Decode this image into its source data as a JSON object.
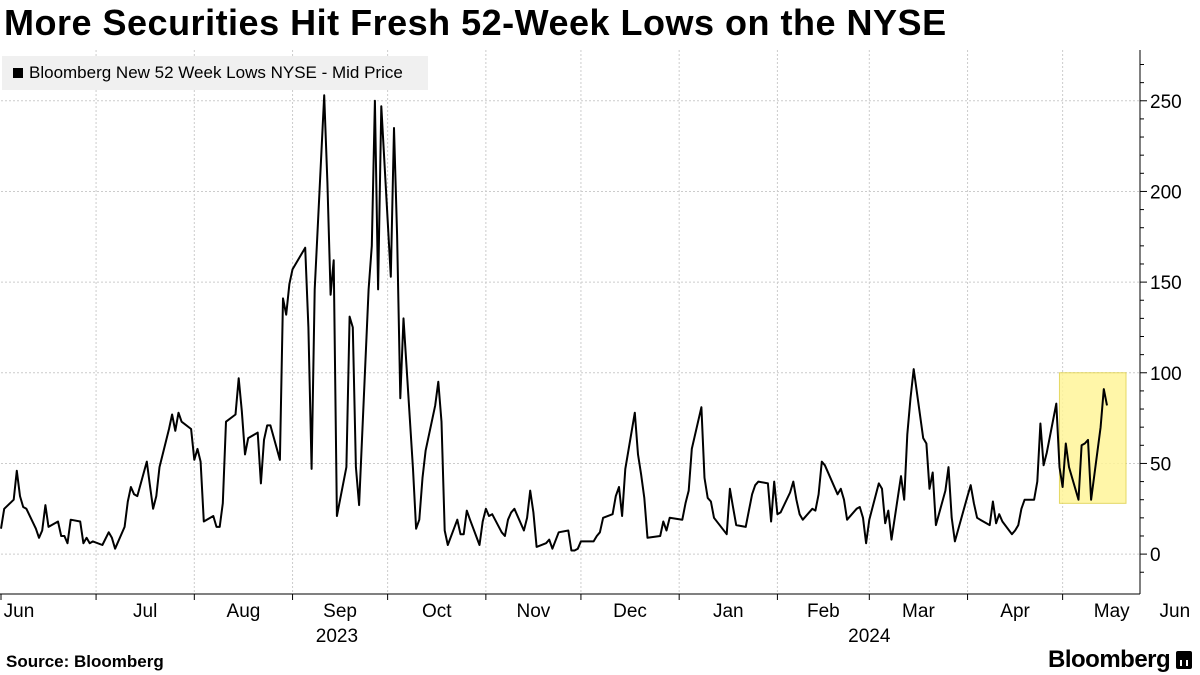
{
  "title": "More Securities Hit Fresh 52-Week Lows on the NYSE",
  "source": "Source: Bloomberg",
  "logo_text": "Bloomberg",
  "chart_data": {
    "type": "line",
    "series": [
      {
        "name": "Bloomberg New 52 Week Lows NYSE - Mid Price",
        "color": "#000000",
        "points": [
          [
            "2023-06-01",
            14
          ],
          [
            "2023-06-02",
            25
          ],
          [
            "2023-06-05",
            30
          ],
          [
            "2023-06-06",
            46
          ],
          [
            "2023-06-07",
            32
          ],
          [
            "2023-06-08",
            26
          ],
          [
            "2023-06-09",
            25
          ],
          [
            "2023-06-12",
            14
          ],
          [
            "2023-06-13",
            9
          ],
          [
            "2023-06-14",
            13
          ],
          [
            "2023-06-15",
            27
          ],
          [
            "2023-06-16",
            15
          ],
          [
            "2023-06-19",
            18
          ],
          [
            "2023-06-20",
            10
          ],
          [
            "2023-06-21",
            10
          ],
          [
            "2023-06-22",
            6
          ],
          [
            "2023-06-23",
            19
          ],
          [
            "2023-06-26",
            18
          ],
          [
            "2023-06-27",
            6
          ],
          [
            "2023-06-28",
            9
          ],
          [
            "2023-06-29",
            6
          ],
          [
            "2023-06-30",
            7
          ],
          [
            "2023-07-03",
            5
          ],
          [
            "2023-07-05",
            12
          ],
          [
            "2023-07-06",
            9
          ],
          [
            "2023-07-07",
            3
          ],
          [
            "2023-07-10",
            15
          ],
          [
            "2023-07-11",
            29
          ],
          [
            "2023-07-12",
            37
          ],
          [
            "2023-07-13",
            33
          ],
          [
            "2023-07-14",
            32
          ],
          [
            "2023-07-17",
            51
          ],
          [
            "2023-07-18",
            38
          ],
          [
            "2023-07-19",
            25
          ],
          [
            "2023-07-20",
            32
          ],
          [
            "2023-07-21",
            48
          ],
          [
            "2023-07-24",
            69
          ],
          [
            "2023-07-25",
            77
          ],
          [
            "2023-07-26",
            68
          ],
          [
            "2023-07-27",
            78
          ],
          [
            "2023-07-28",
            73
          ],
          [
            "2023-07-31",
            69
          ],
          [
            "2023-08-01",
            52
          ],
          [
            "2023-08-02",
            58
          ],
          [
            "2023-08-03",
            51
          ],
          [
            "2023-08-04",
            18
          ],
          [
            "2023-08-07",
            21
          ],
          [
            "2023-08-08",
            15
          ],
          [
            "2023-08-09",
            15
          ],
          [
            "2023-08-10",
            28
          ],
          [
            "2023-08-11",
            73
          ],
          [
            "2023-08-14",
            77
          ],
          [
            "2023-08-15",
            97
          ],
          [
            "2023-08-16",
            79
          ],
          [
            "2023-08-17",
            55
          ],
          [
            "2023-08-18",
            64
          ],
          [
            "2023-08-21",
            67
          ],
          [
            "2023-08-22",
            39
          ],
          [
            "2023-08-23",
            63
          ],
          [
            "2023-08-24",
            71
          ],
          [
            "2023-08-25",
            71
          ],
          [
            "2023-08-28",
            52
          ],
          [
            "2023-08-29",
            141
          ],
          [
            "2023-08-30",
            132
          ],
          [
            "2023-08-31",
            149
          ],
          [
            "2023-09-01",
            157
          ],
          [
            "2023-09-05",
            169
          ],
          [
            "2023-09-06",
            125
          ],
          [
            "2023-09-07",
            47
          ],
          [
            "2023-09-08",
            146
          ],
          [
            "2023-09-11",
            253
          ],
          [
            "2023-09-12",
            205
          ],
          [
            "2023-09-13",
            143
          ],
          [
            "2023-09-14",
            162
          ],
          [
            "2023-09-15",
            21
          ],
          [
            "2023-09-18",
            48
          ],
          [
            "2023-09-19",
            131
          ],
          [
            "2023-09-20",
            125
          ],
          [
            "2023-09-21",
            48
          ],
          [
            "2023-09-22",
            27
          ],
          [
            "2023-09-25",
            146
          ],
          [
            "2023-09-26",
            170
          ],
          [
            "2023-09-27",
            250
          ],
          [
            "2023-09-28",
            146
          ],
          [
            "2023-09-29",
            247
          ],
          [
            "2023-10-02",
            153
          ],
          [
            "2023-10-03",
            235
          ],
          [
            "2023-10-04",
            176
          ],
          [
            "2023-10-05",
            86
          ],
          [
            "2023-10-06",
            130
          ],
          [
            "2023-10-09",
            47
          ],
          [
            "2023-10-10",
            14
          ],
          [
            "2023-10-11",
            19
          ],
          [
            "2023-10-12",
            42
          ],
          [
            "2023-10-13",
            57
          ],
          [
            "2023-10-16",
            82
          ],
          [
            "2023-10-17",
            95
          ],
          [
            "2023-10-18",
            73
          ],
          [
            "2023-10-19",
            13
          ],
          [
            "2023-10-20",
            5
          ],
          [
            "2023-10-23",
            19
          ],
          [
            "2023-10-24",
            11
          ],
          [
            "2023-10-25",
            11
          ],
          [
            "2023-10-26",
            24
          ],
          [
            "2023-10-27",
            19
          ],
          [
            "2023-10-30",
            5
          ],
          [
            "2023-10-31",
            18
          ],
          [
            "2023-11-01",
            25
          ],
          [
            "2023-11-02",
            21
          ],
          [
            "2023-11-03",
            22
          ],
          [
            "2023-11-06",
            12
          ],
          [
            "2023-11-07",
            10
          ],
          [
            "2023-11-08",
            19
          ],
          [
            "2023-11-09",
            23
          ],
          [
            "2023-11-10",
            25
          ],
          [
            "2023-11-13",
            13
          ],
          [
            "2023-11-14",
            20
          ],
          [
            "2023-11-15",
            35
          ],
          [
            "2023-11-16",
            23
          ],
          [
            "2023-11-17",
            4
          ],
          [
            "2023-11-20",
            6
          ],
          [
            "2023-11-21",
            8
          ],
          [
            "2023-11-22",
            3
          ],
          [
            "2023-11-24",
            12
          ],
          [
            "2023-11-27",
            13
          ],
          [
            "2023-11-28",
            2
          ],
          [
            "2023-11-29",
            2
          ],
          [
            "2023-11-30",
            3
          ],
          [
            "2023-12-01",
            7
          ],
          [
            "2023-12-04",
            7
          ],
          [
            "2023-12-05",
            7
          ],
          [
            "2023-12-06",
            10
          ],
          [
            "2023-12-07",
            12
          ],
          [
            "2023-12-08",
            20
          ],
          [
            "2023-12-11",
            22
          ],
          [
            "2023-12-12",
            32
          ],
          [
            "2023-12-13",
            37
          ],
          [
            "2023-12-14",
            21
          ],
          [
            "2023-12-15",
            47
          ],
          [
            "2023-12-18",
            78
          ],
          [
            "2023-12-19",
            55
          ],
          [
            "2023-12-20",
            44
          ],
          [
            "2023-12-21",
            31
          ],
          [
            "2023-12-22",
            9
          ],
          [
            "2023-12-26",
            10
          ],
          [
            "2023-12-27",
            18
          ],
          [
            "2023-12-28",
            13
          ],
          [
            "2023-12-29",
            20
          ],
          [
            "2024-01-02",
            19
          ],
          [
            "2024-01-03",
            28
          ],
          [
            "2024-01-04",
            35
          ],
          [
            "2024-01-05",
            58
          ],
          [
            "2024-01-08",
            81
          ],
          [
            "2024-01-09",
            42
          ],
          [
            "2024-01-10",
            31
          ],
          [
            "2024-01-11",
            29
          ],
          [
            "2024-01-12",
            20
          ],
          [
            "2024-01-16",
            11
          ],
          [
            "2024-01-17",
            36
          ],
          [
            "2024-01-18",
            26
          ],
          [
            "2024-01-19",
            16
          ],
          [
            "2024-01-22",
            15
          ],
          [
            "2024-01-23",
            24
          ],
          [
            "2024-01-24",
            33
          ],
          [
            "2024-01-25",
            38
          ],
          [
            "2024-01-26",
            40
          ],
          [
            "2024-01-29",
            39
          ],
          [
            "2024-01-30",
            18
          ],
          [
            "2024-01-31",
            40
          ],
          [
            "2024-02-01",
            22
          ],
          [
            "2024-02-02",
            23
          ],
          [
            "2024-02-05",
            34
          ],
          [
            "2024-02-06",
            40
          ],
          [
            "2024-02-07",
            30
          ],
          [
            "2024-02-08",
            22
          ],
          [
            "2024-02-09",
            19
          ],
          [
            "2024-02-12",
            25
          ],
          [
            "2024-02-13",
            24
          ],
          [
            "2024-02-14",
            33
          ],
          [
            "2024-02-15",
            51
          ],
          [
            "2024-02-16",
            49
          ],
          [
            "2024-02-20",
            33
          ],
          [
            "2024-02-21",
            36
          ],
          [
            "2024-02-22",
            30
          ],
          [
            "2024-02-23",
            19
          ],
          [
            "2024-02-26",
            25
          ],
          [
            "2024-02-27",
            26
          ],
          [
            "2024-02-28",
            20
          ],
          [
            "2024-02-29",
            6
          ],
          [
            "2024-03-01",
            19
          ],
          [
            "2024-03-04",
            39
          ],
          [
            "2024-03-05",
            36
          ],
          [
            "2024-03-06",
            17
          ],
          [
            "2024-03-07",
            24
          ],
          [
            "2024-03-08",
            8
          ],
          [
            "2024-03-11",
            43
          ],
          [
            "2024-03-12",
            30
          ],
          [
            "2024-03-13",
            66
          ],
          [
            "2024-03-14",
            86
          ],
          [
            "2024-03-15",
            102
          ],
          [
            "2024-03-18",
            64
          ],
          [
            "2024-03-19",
            61
          ],
          [
            "2024-03-20",
            36
          ],
          [
            "2024-03-21",
            45
          ],
          [
            "2024-03-22",
            16
          ],
          [
            "2024-03-25",
            35
          ],
          [
            "2024-03-26",
            48
          ],
          [
            "2024-03-27",
            20
          ],
          [
            "2024-03-28",
            7
          ],
          [
            "2024-04-01",
            32
          ],
          [
            "2024-04-02",
            38
          ],
          [
            "2024-04-03",
            28
          ],
          [
            "2024-04-04",
            20
          ],
          [
            "2024-04-05",
            19
          ],
          [
            "2024-04-08",
            16
          ],
          [
            "2024-04-09",
            29
          ],
          [
            "2024-04-10",
            17
          ],
          [
            "2024-04-11",
            22
          ],
          [
            "2024-04-12",
            18
          ],
          [
            "2024-04-15",
            11
          ],
          [
            "2024-04-16",
            13
          ],
          [
            "2024-04-17",
            16
          ],
          [
            "2024-04-18",
            25
          ],
          [
            "2024-04-19",
            30
          ],
          [
            "2024-04-22",
            30
          ],
          [
            "2024-04-23",
            40
          ],
          [
            "2024-04-24",
            72
          ],
          [
            "2024-04-25",
            49
          ],
          [
            "2024-04-26",
            56
          ],
          [
            "2024-04-29",
            83
          ],
          [
            "2024-04-30",
            48
          ],
          [
            "2024-05-01",
            37
          ],
          [
            "2024-05-02",
            61
          ],
          [
            "2024-05-03",
            48
          ],
          [
            "2024-05-06",
            30
          ],
          [
            "2024-05-07",
            60
          ],
          [
            "2024-05-08",
            61
          ],
          [
            "2024-05-09",
            63
          ],
          [
            "2024-05-10",
            30
          ],
          [
            "2024-05-13",
            70
          ],
          [
            "2024-05-14",
            91
          ],
          [
            "2024-05-15",
            82
          ]
        ]
      }
    ],
    "x_range": [
      "2023-06-01",
      "2024-05-21"
    ],
    "ylim": [
      -22,
      278
    ],
    "y_ticks": [
      0,
      50,
      100,
      150,
      200,
      250
    ],
    "x_ticks": [
      {
        "label": "Jun",
        "date": "2023-06-01"
      },
      {
        "label": "Jul",
        "date": "2023-07-01"
      },
      {
        "label": "Aug",
        "date": "2023-08-01"
      },
      {
        "label": "Sep",
        "date": "2023-09-01"
      },
      {
        "label": "Oct",
        "date": "2023-10-01"
      },
      {
        "label": "Nov",
        "date": "2023-11-01"
      },
      {
        "label": "Dec",
        "date": "2023-12-01"
      },
      {
        "label": "Jan",
        "date": "2024-01-01"
      },
      {
        "label": "Feb",
        "date": "2024-02-01"
      },
      {
        "label": "Mar",
        "date": "2024-03-01"
      },
      {
        "label": "Apr",
        "date": "2024-04-01"
      },
      {
        "label": "May",
        "date": "2024-05-01"
      },
      {
        "label": "Jun",
        "date": "2024-06-01"
      }
    ],
    "year_labels": [
      {
        "label": "2023",
        "date": "2023-09-15"
      },
      {
        "label": "2024",
        "date": "2024-03-01"
      }
    ],
    "highlight": {
      "x_start": "2024-04-30",
      "x_end": "2024-05-21",
      "y_start": 28,
      "y_end": 100,
      "color": "#fff599"
    },
    "grid": true,
    "legend_position": "top-left",
    "axis_side": "right"
  }
}
